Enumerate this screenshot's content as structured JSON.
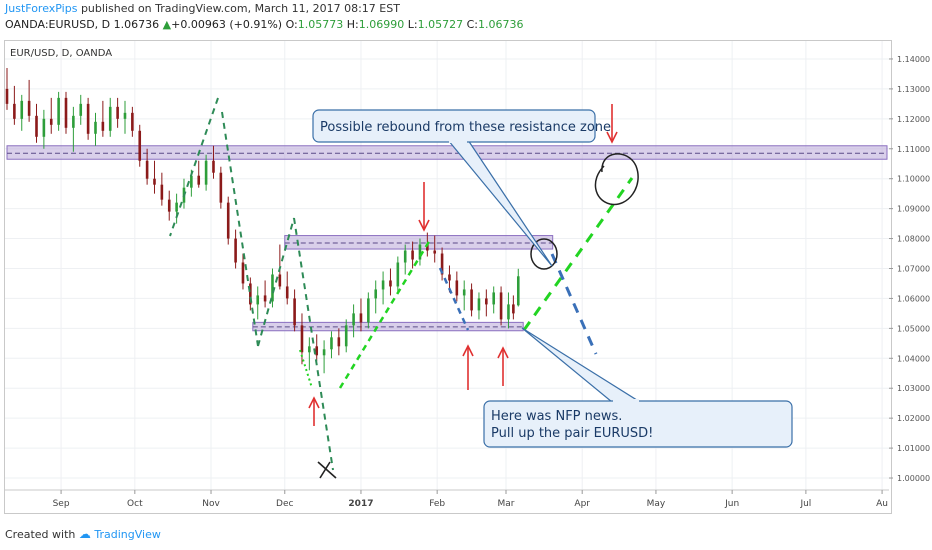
{
  "header": {
    "author": "JustForexPips",
    "published": " published on TradingView.com, March 11, 2017 08:17 EST",
    "symbol": "OANDA:EURUSD, D",
    "last": "1.06736",
    "change_arrow": "▲",
    "change": "+0.00963 (+0.91%)",
    "o_label": "O:",
    "o_value": "1.05773",
    "h_label": "H:",
    "h_value": "1.06990",
    "l_label": "L:",
    "l_value": "1.05727",
    "c_label": "C:",
    "c_value": "1.06736"
  },
  "footer": {
    "created_with": "Created with",
    "brand": "TradingView"
  },
  "colors": {
    "up": "#2e9e3a",
    "down": "#8b1a1a",
    "zone_fill": "#b9a7d8",
    "zone_stroke": "#8a6fc0",
    "callout_fill": "#e7f0fa",
    "callout_stroke": "#3a6fa8",
    "green_dash": "#22d422",
    "blue_dash": "#3a70b8",
    "arrow_red": "#e03030"
  },
  "chart_data": {
    "type": "candlestick",
    "title": "EUR/USD, D, OANDA",
    "ylim": [
      0.996,
      1.146
    ],
    "yticks": [
      1.14,
      1.13,
      1.12,
      1.11,
      1.1,
      1.09,
      1.08,
      1.07,
      1.06,
      1.05,
      1.04,
      1.03,
      1.02,
      1.01,
      1.0
    ],
    "ytick_labels": [
      "1.14000",
      "1.13000",
      "1.12000",
      "1.11000",
      "1.10000",
      "1.09000",
      "1.08000",
      "1.07000",
      "1.06000",
      "1.05000",
      "1.04000",
      "1.03000",
      "1.02000",
      "1.01000",
      "1.00000"
    ],
    "x_months": [
      {
        "label": "Sep",
        "day": 22
      },
      {
        "label": "Oct",
        "day": 52
      },
      {
        "label": "Nov",
        "day": 83
      },
      {
        "label": "Dec",
        "day": 113
      },
      {
        "label": "2017",
        "day": 144
      },
      {
        "label": "Feb",
        "day": 175
      },
      {
        "label": "Mar",
        "day": 203
      },
      {
        "label": "Apr",
        "day": 234
      },
      {
        "label": "May",
        "day": 264
      },
      {
        "label": "Jun",
        "day": 295
      },
      {
        "label": "Jul",
        "day": 325
      },
      {
        "label": "Au",
        "day": 356
      }
    ],
    "xlim": [
      0,
      358
    ],
    "candles": [
      [
        0,
        1.13,
        1.137,
        1.123,
        1.125
      ],
      [
        3,
        1.125,
        1.131,
        1.118,
        1.12
      ],
      [
        6,
        1.12,
        1.128,
        1.116,
        1.126
      ],
      [
        9,
        1.126,
        1.133,
        1.119,
        1.121
      ],
      [
        12,
        1.121,
        1.125,
        1.112,
        1.114
      ],
      [
        15,
        1.114,
        1.123,
        1.11,
        1.12
      ],
      [
        18,
        1.12,
        1.127,
        1.115,
        1.118
      ],
      [
        21,
        1.118,
        1.129,
        1.116,
        1.127
      ],
      [
        24,
        1.127,
        1.129,
        1.115,
        1.117
      ],
      [
        27,
        1.117,
        1.124,
        1.109,
        1.121
      ],
      [
        30,
        1.121,
        1.128,
        1.118,
        1.125
      ],
      [
        33,
        1.125,
        1.127,
        1.113,
        1.115
      ],
      [
        36,
        1.115,
        1.122,
        1.111,
        1.119
      ],
      [
        39,
        1.119,
        1.126,
        1.114,
        1.116
      ],
      [
        42,
        1.116,
        1.127,
        1.114,
        1.124
      ],
      [
        45,
        1.124,
        1.127,
        1.117,
        1.12
      ],
      [
        48,
        1.12,
        1.126,
        1.115,
        1.122
      ],
      [
        51,
        1.122,
        1.124,
        1.114,
        1.116
      ],
      [
        54,
        1.116,
        1.118,
        1.104,
        1.106
      ],
      [
        57,
        1.106,
        1.11,
        1.098,
        1.1
      ],
      [
        60,
        1.1,
        1.106,
        1.095,
        1.098
      ],
      [
        63,
        1.098,
        1.102,
        1.091,
        1.093
      ],
      [
        66,
        1.093,
        1.096,
        1.086,
        1.089
      ],
      [
        69,
        1.089,
        1.095,
        1.085,
        1.092
      ],
      [
        72,
        1.092,
        1.1,
        1.09,
        1.097
      ],
      [
        75,
        1.097,
        1.103,
        1.094,
        1.101
      ],
      [
        78,
        1.101,
        1.106,
        1.097,
        1.098
      ],
      [
        81,
        1.098,
        1.108,
        1.096,
        1.106
      ],
      [
        84,
        1.106,
        1.111,
        1.1,
        1.102
      ],
      [
        87,
        1.102,
        1.104,
        1.09,
        1.092
      ],
      [
        90,
        1.092,
        1.094,
        1.078,
        1.08
      ],
      [
        93,
        1.08,
        1.083,
        1.07,
        1.072
      ],
      [
        96,
        1.072,
        1.075,
        1.063,
        1.065
      ],
      [
        99,
        1.065,
        1.067,
        1.056,
        1.058
      ],
      [
        102,
        1.058,
        1.064,
        1.053,
        1.061
      ],
      [
        105,
        1.061,
        1.066,
        1.057,
        1.059
      ],
      [
        108,
        1.059,
        1.07,
        1.057,
        1.068
      ],
      [
        111,
        1.068,
        1.078,
        1.063,
        1.064
      ],
      [
        114,
        1.064,
        1.069,
        1.058,
        1.06
      ],
      [
        117,
        1.06,
        1.063,
        1.049,
        1.051
      ],
      [
        120,
        1.051,
        1.055,
        1.038,
        1.042
      ],
      [
        123,
        1.042,
        1.047,
        1.036,
        1.044
      ],
      [
        126,
        1.044,
        1.048,
        1.039,
        1.041
      ],
      [
        129,
        1.041,
        1.046,
        1.035,
        1.043
      ],
      [
        132,
        1.043,
        1.049,
        1.04,
        1.047
      ],
      [
        135,
        1.047,
        1.05,
        1.041,
        1.044
      ],
      [
        138,
        1.044,
        1.053,
        1.042,
        1.051
      ],
      [
        141,
        1.051,
        1.058,
        1.047,
        1.055
      ],
      [
        144,
        1.055,
        1.06,
        1.049,
        1.052
      ],
      [
        147,
        1.052,
        1.062,
        1.05,
        1.06
      ],
      [
        150,
        1.06,
        1.066,
        1.055,
        1.063
      ],
      [
        153,
        1.063,
        1.069,
        1.058,
        1.066
      ],
      [
        156,
        1.066,
        1.07,
        1.061,
        1.064
      ],
      [
        159,
        1.064,
        1.074,
        1.062,
        1.072
      ],
      [
        162,
        1.072,
        1.078,
        1.068,
        1.076
      ],
      [
        165,
        1.076,
        1.079,
        1.07,
        1.073
      ],
      [
        168,
        1.073,
        1.08,
        1.071,
        1.078
      ],
      [
        171,
        1.078,
        1.082,
        1.074,
        1.076
      ],
      [
        174,
        1.076,
        1.081,
        1.072,
        1.075
      ],
      [
        177,
        1.075,
        1.077,
        1.066,
        1.068
      ],
      [
        180,
        1.068,
        1.071,
        1.062,
        1.066
      ],
      [
        183,
        1.066,
        1.069,
        1.059,
        1.061
      ],
      [
        186,
        1.061,
        1.066,
        1.056,
        1.063
      ],
      [
        189,
        1.063,
        1.065,
        1.054,
        1.056
      ],
      [
        192,
        1.056,
        1.062,
        1.053,
        1.06
      ],
      [
        195,
        1.06,
        1.063,
        1.054,
        1.058
      ],
      [
        198,
        1.058,
        1.064,
        1.055,
        1.062
      ],
      [
        201,
        1.062,
        1.064,
        1.051,
        1.053
      ],
      [
        204,
        1.053,
        1.062,
        1.05,
        1.058
      ],
      [
        206,
        1.058,
        1.061,
        1.053,
        1.055
      ],
      [
        208,
        1.0577,
        1.0699,
        1.0573,
        1.0674
      ]
    ],
    "zones": [
      {
        "name": "resistance-zone-upper",
        "from": 1.1065,
        "to": 1.111,
        "x0": 0,
        "x1": 358,
        "mid": 1.1085
      },
      {
        "name": "resistance-zone-middle",
        "from": 1.0765,
        "to": 1.081,
        "x0": 113,
        "x1": 222,
        "mid": 1.0785
      },
      {
        "name": "support-zone-lower",
        "from": 1.0492,
        "to": 1.052,
        "x0": 100,
        "x1": 210,
        "mid": 1.0505
      }
    ],
    "annotations": [
      {
        "text": "Possible rebound from these resistance zone"
      },
      {
        "text": "Here was NFP news."
      },
      {
        "text": "Pull up the pair EURUSD!"
      }
    ]
  }
}
